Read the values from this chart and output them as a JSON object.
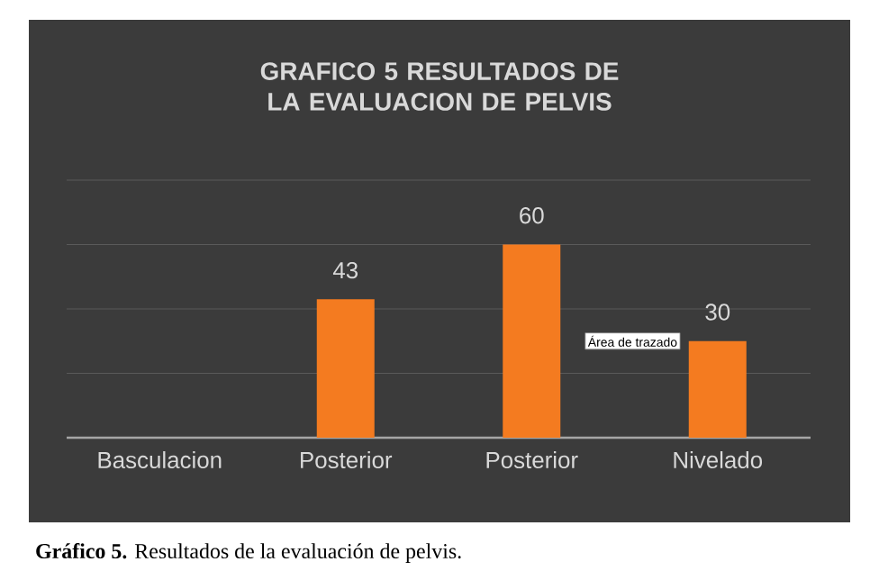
{
  "chart_data": {
    "type": "bar",
    "title": "GRAFICO 5 RESULTADOS DE LA EVALUACION DE PELVIS",
    "categories": [
      "Basculacion",
      "Posterior",
      "Posterior",
      "Nivelado"
    ],
    "values": [
      null,
      43,
      60,
      30
    ],
    "color": "#f47b20",
    "ylim": [
      0,
      80
    ],
    "yticks": [
      {
        "value": 0,
        "label": null
      },
      {
        "value": 20,
        "label": null
      },
      {
        "value": 40,
        "label": null
      },
      {
        "value": 60,
        "label": null
      },
      {
        "value": 80,
        "label": null
      }
    ],
    "tick_labels": "x",
    "grid": "y",
    "data_labels": true,
    "annotations": [
      "Área de trazado",
      "**Gráfico 5.** Resultados de la evaluación de pelvis."
    ]
  }
}
